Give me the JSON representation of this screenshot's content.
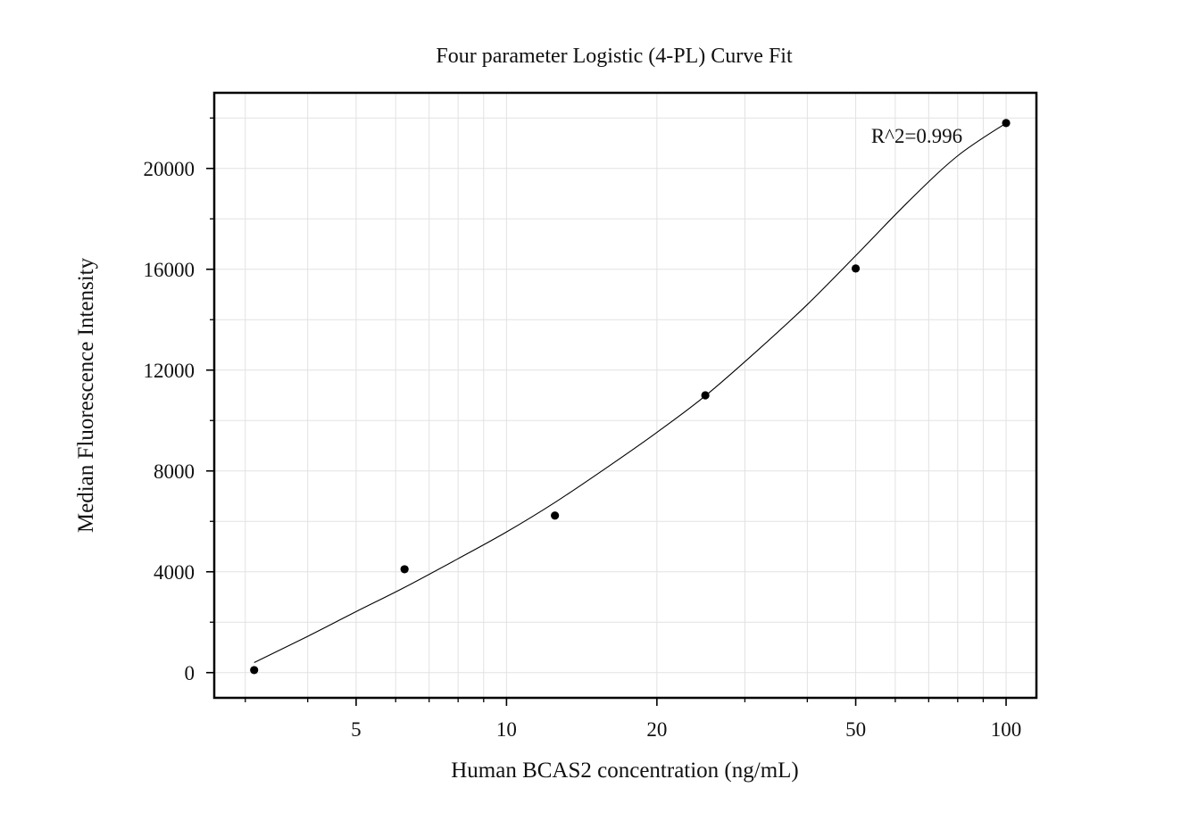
{
  "chart_data": {
    "type": "scatter",
    "title": "Four parameter Logistic (4-PL) Curve Fit",
    "xlabel": "Human BCAS2 concentration (ng/mL)",
    "ylabel": "Median Fluorescence Intensity",
    "x_scale": "log",
    "xlim": [
      2.6,
      115
    ],
    "ylim": [
      -1000,
      23000
    ],
    "x_ticks": [
      {
        "value": 5,
        "label": "5"
      },
      {
        "value": 10,
        "label": "10"
      },
      {
        "value": 20,
        "label": "20"
      },
      {
        "value": 50,
        "label": "50"
      },
      {
        "value": 100,
        "label": "100"
      }
    ],
    "x_minor_ticks": [
      3,
      4,
      6,
      7,
      8,
      9,
      30,
      40,
      60,
      70,
      80,
      90
    ],
    "y_ticks": [
      {
        "value": 0,
        "label": "0"
      },
      {
        "value": 4000,
        "label": "4000"
      },
      {
        "value": 8000,
        "label": "8000"
      },
      {
        "value": 12000,
        "label": "12000"
      },
      {
        "value": 16000,
        "label": "16000"
      },
      {
        "value": 20000,
        "label": "20000"
      }
    ],
    "y_minor_ticks": [
      2000,
      6000,
      10000,
      14000,
      18000,
      22000
    ],
    "grid": true,
    "series": [
      {
        "points": [
          {
            "x": 3.125,
            "y": 100
          },
          {
            "x": 6.25,
            "y": 4100
          },
          {
            "x": 12.5,
            "y": 6230
          },
          {
            "x": 25,
            "y": 11000
          },
          {
            "x": 50,
            "y": 16030
          },
          {
            "x": 100,
            "y": 21800
          }
        ]
      }
    ],
    "fit_curve": {
      "x": [
        3.125,
        4,
        5,
        6.25,
        8,
        10,
        12.5,
        16,
        20,
        25,
        32,
        40,
        50,
        64,
        80,
        100
      ],
      "y": [
        400,
        1440,
        2420,
        3380,
        4520,
        5580,
        6750,
        8180,
        9530,
        10980,
        12830,
        14600,
        16540,
        18720,
        20500,
        21800
      ]
    },
    "annotations": [
      {
        "text": "R^2=0.996"
      }
    ],
    "colors": {
      "points": "#000000",
      "curve": "#000000",
      "grid": "#e2e2e2",
      "frame": "#000000"
    }
  }
}
